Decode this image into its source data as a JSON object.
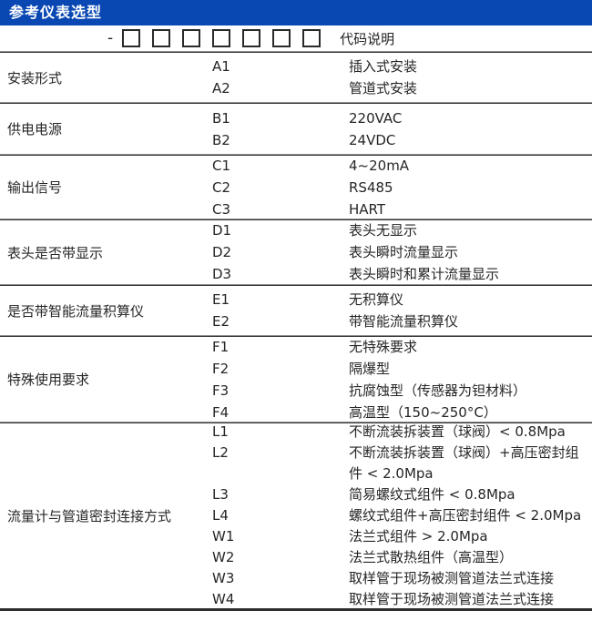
{
  "header": {
    "title": "参考仪表选型"
  },
  "code_row": {
    "dash": "-",
    "box_count": 7,
    "caption": "代码说明"
  },
  "colors": {
    "header_bg": "#0948b3",
    "header_text": "#ffffff",
    "body_text": "#262626",
    "divider_light": "#8f8f8f",
    "divider_dark": "#333333"
  },
  "sections": [
    {
      "label": "安装形式",
      "options": [
        {
          "code": "A1",
          "desc": "插入式安装"
        },
        {
          "code": "A2",
          "desc": "管道式安装"
        }
      ]
    },
    {
      "label": "供电电源",
      "options": [
        {
          "code": "B1",
          "desc": "220VAC"
        },
        {
          "code": "B2",
          "desc": "24VDC"
        }
      ]
    },
    {
      "label": "输出信号",
      "options": [
        {
          "code": "C1",
          "desc": "4~20mA"
        },
        {
          "code": "C2",
          "desc": "RS485"
        },
        {
          "code": "C3",
          "desc": "HART"
        }
      ]
    },
    {
      "label": "表头是否带显示",
      "options": [
        {
          "code": "D1",
          "desc": "表头无显示"
        },
        {
          "code": "D2",
          "desc": "表头瞬时流量显示"
        },
        {
          "code": "D3",
          "desc": "表头瞬时和累计流量显示"
        }
      ]
    },
    {
      "label": "是否带智能流量积算仪",
      "options": [
        {
          "code": "E1",
          "desc": "无积算仪"
        },
        {
          "code": "E2",
          "desc": "带智能流量积算仪"
        }
      ]
    },
    {
      "label": "特殊使用要求",
      "options": [
        {
          "code": "F1",
          "desc": "无特殊要求"
        },
        {
          "code": "F2",
          "desc": "隔爆型"
        },
        {
          "code": "F3",
          "desc": "抗腐蚀型（传感器为钽材料）"
        },
        {
          "code": "F4",
          "desc": "高温型（150~250°C）"
        }
      ]
    },
    {
      "label": "流量计与管道密封连接方式",
      "options": [
        {
          "code": "L1",
          "desc": "不断流装拆装置（球阀）< 0.8Mpa"
        },
        {
          "code": "L2",
          "desc": "不断流装拆装置（球阀）+高压密封组件 < 2.0Mpa"
        },
        {
          "code": "L3",
          "desc": "简易螺纹式组件 < 0.8Mpa"
        },
        {
          "code": "L4",
          "desc": "螺纹式组件+高压密封组件 < 2.0Mpa"
        },
        {
          "code": "W1",
          "desc": "法兰式组件 > 2.0Mpa"
        },
        {
          "code": "W2",
          "desc": "法兰式散热组件（高温型）"
        },
        {
          "code": "W3",
          "desc": "取样管于现场被测管道法兰式连接"
        },
        {
          "code": "W4",
          "desc": "取样管于现场被测管道法兰式连接"
        }
      ]
    }
  ]
}
